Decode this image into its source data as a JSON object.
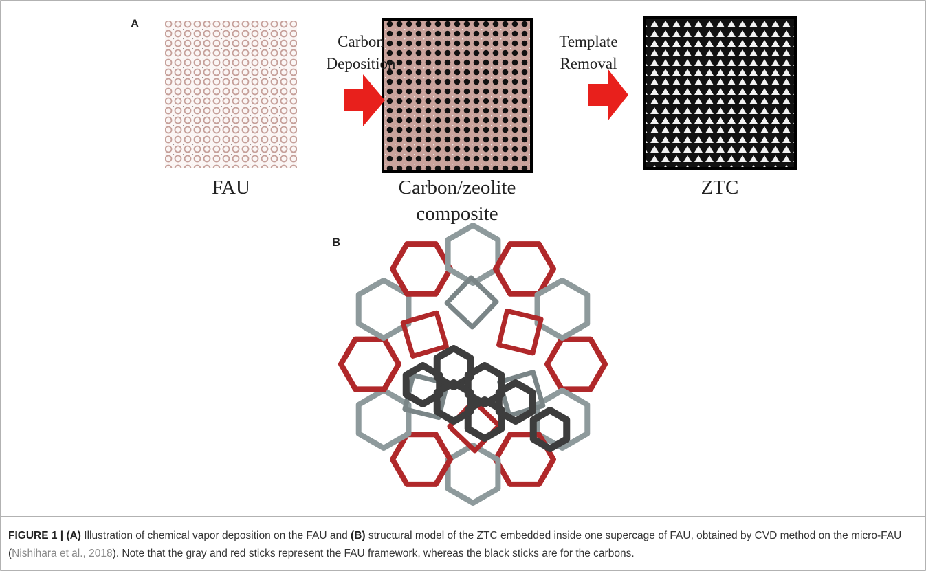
{
  "panel_a": {
    "label": "A",
    "step_1": {
      "line_1": "Carbon",
      "line_2": "Deposition"
    },
    "step_2": {
      "line_1": "Template",
      "line_2": "Removal"
    },
    "image_1_label": "FAU",
    "image_2_label": {
      "line_1": "Carbon/zeolite",
      "line_2": "composite"
    },
    "image_3_label": "ZTC"
  },
  "panel_b": {
    "label": "B"
  },
  "caption": {
    "figure_label": "FIGURE 1 |",
    "label_a": "(A)",
    "text_1": "Illustration of chemical vapor deposition on the FAU and",
    "label_b": "(B)",
    "text_2": "structural model of the ZTC embedded inside one supercage of FAU, obtained by CVD method on the micro-FAU (",
    "citation": "Nishihara et al., 2018",
    "text_3": "). Note that the gray and red sticks represent the FAU framework, whereas the black sticks are for the carbons."
  }
}
